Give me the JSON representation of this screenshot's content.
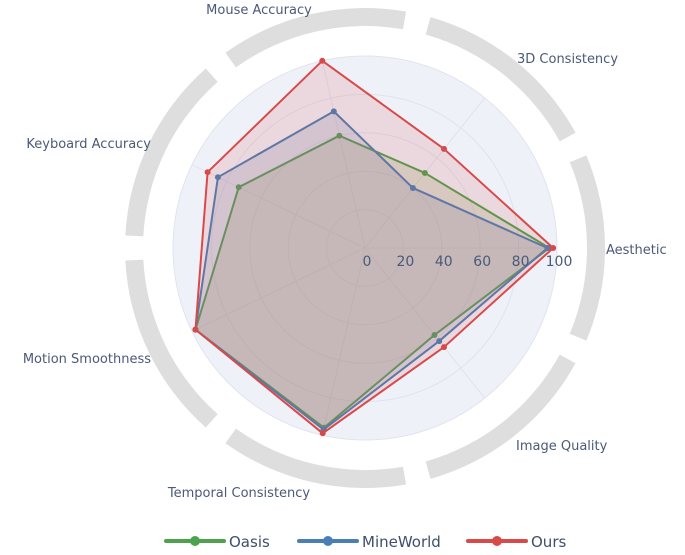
{
  "chart_data": {
    "type": "radar",
    "axes": [
      "Aesthetic",
      "3D Consistency",
      "Mouse Accuracy",
      "Keyboard Accuracy",
      "Motion Smoothness",
      "Temporal Consistency",
      "Image Quality"
    ],
    "radial_ticks": [
      "0",
      "20",
      "40",
      "60",
      "80",
      "100"
    ],
    "rmax": 100,
    "series": [
      {
        "name": "Oasis",
        "color": "#4ea24e",
        "values": [
          96,
          50,
          60,
          73,
          98,
          96,
          58
        ]
      },
      {
        "name": "MineWorld",
        "color": "#4a7fb5",
        "values": [
          95,
          40,
          73,
          85,
          98,
          97,
          62
        ]
      },
      {
        "name": "Ours",
        "color": "#d84a4a",
        "values": [
          98,
          66,
          100,
          91,
          98,
          99,
          66
        ]
      }
    ],
    "fill_color": "#d84a4a",
    "grid": true,
    "legend": "bottom"
  }
}
